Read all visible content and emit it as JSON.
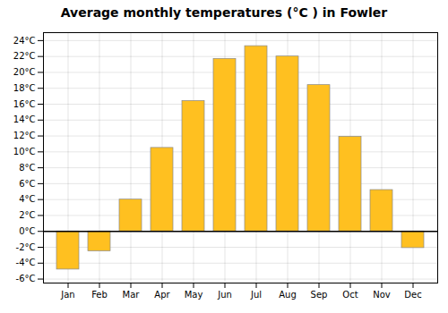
{
  "chart_data": {
    "type": "bar",
    "title": "Average monthly temperatures (°C ) in Fowler",
    "categories": [
      "Jan",
      "Feb",
      "Mar",
      "Apr",
      "May",
      "Jun",
      "Jul",
      "Aug",
      "Sep",
      "Oct",
      "Nov",
      "Dec"
    ],
    "values": [
      -4.8,
      -2.5,
      4.0,
      10.5,
      16.4,
      21.7,
      23.3,
      22.0,
      18.4,
      11.9,
      5.2,
      -2.1
    ],
    "color": "#FFC020",
    "ylim": [
      -6.5,
      25
    ],
    "yticks": [
      {
        "value": -6,
        "label": "-6°C"
      },
      {
        "value": -4,
        "label": "-4°C"
      },
      {
        "value": -2,
        "label": "-2°C"
      },
      {
        "value": 0,
        "label": "0°C"
      },
      {
        "value": 2,
        "label": "2°C"
      },
      {
        "value": 4,
        "label": "4°C"
      },
      {
        "value": 6,
        "label": "6°C"
      },
      {
        "value": 8,
        "label": "8°C"
      },
      {
        "value": 10,
        "label": "10°C"
      },
      {
        "value": 12,
        "label": "12°C"
      },
      {
        "value": 14,
        "label": "14°C"
      },
      {
        "value": 16,
        "label": "16°C"
      },
      {
        "value": 18,
        "label": "18°C"
      },
      {
        "value": 20,
        "label": "20°C"
      },
      {
        "value": 22,
        "label": "22°C"
      },
      {
        "value": 24,
        "label": "24°C"
      }
    ],
    "grid": true
  }
}
